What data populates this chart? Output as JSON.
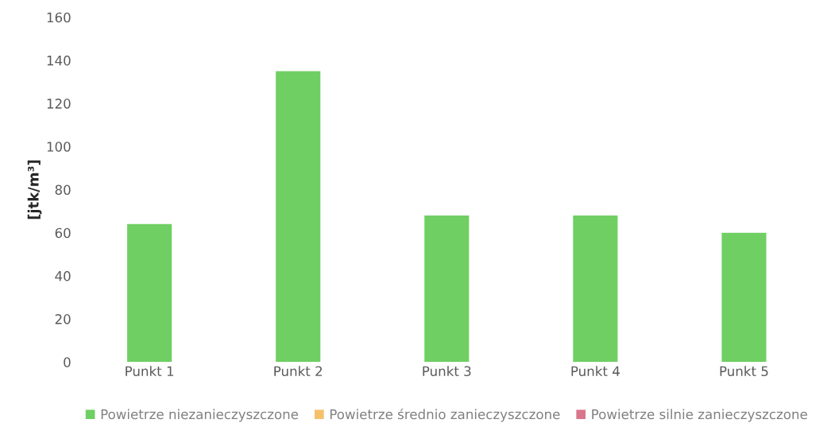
{
  "chart_data": {
    "type": "bar",
    "stacked": true,
    "ylabel": "[jtk/m³]",
    "categories": [
      "Punkt 1",
      "Punkt 2",
      "Punkt 3",
      "Punkt 4",
      "Punkt 5"
    ],
    "series": [
      {
        "name": "Powietrze niezanieczyszczone",
        "color": "#6fcf63",
        "values": [
          64,
          135,
          68,
          68,
          60
        ]
      },
      {
        "name": "Powietrze średnio zanieczyszczone",
        "color": "#f5c06a",
        "values": [
          0,
          0,
          0,
          0,
          0
        ]
      },
      {
        "name": "Powietrze silnie zanieczyszczone",
        "color": "#d9768c",
        "values": [
          0,
          0,
          0,
          0,
          0
        ]
      }
    ],
    "ylim": [
      0,
      160
    ],
    "yticks": [
      0,
      20,
      40,
      60,
      80,
      100,
      120,
      140,
      160
    ],
    "grid": false,
    "legend": "bottom"
  }
}
